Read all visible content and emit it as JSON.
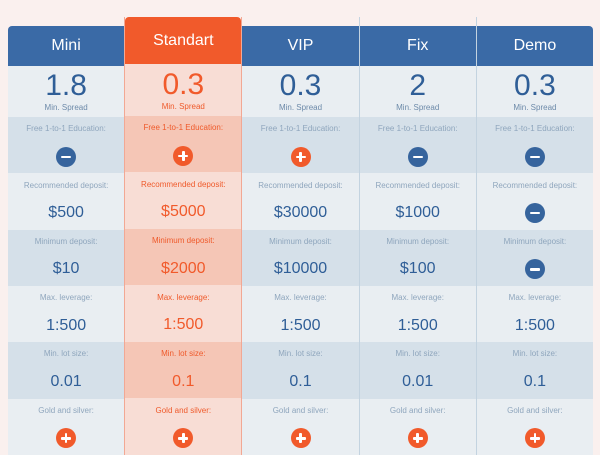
{
  "plans": [
    {
      "name": "Mini",
      "featured": false,
      "spread": "1.8",
      "spread_label": "Min. Spread",
      "education_label": "Free 1-to-1 Education:",
      "education": "minus",
      "recommended_label": "Recommended deposit:",
      "recommended": "$500",
      "minimum_label": "Minimum deposit:",
      "minimum": "$10",
      "leverage_label": "Max. leverage:",
      "leverage": "1:500",
      "lot_label": "Min. lot size:",
      "lot": "0.01",
      "gold_label": "Gold and silver:",
      "gold": "plus"
    },
    {
      "name": "Standart",
      "featured": true,
      "spread": "0.3",
      "spread_label": "Min. Spread",
      "education_label": "Free 1-to-1 Education:",
      "education": "plus",
      "recommended_label": "Recommended deposit:",
      "recommended": "$5000",
      "minimum_label": "Minimum deposit:",
      "minimum": "$2000",
      "leverage_label": "Max. leverage:",
      "leverage": "1:500",
      "lot_label": "Min. lot size:",
      "lot": "0.1",
      "gold_label": "Gold and silver:",
      "gold": "plus"
    },
    {
      "name": "VIP",
      "featured": false,
      "spread": "0.3",
      "spread_label": "Min. Spread",
      "education_label": "Free 1-to-1 Education:",
      "education": "plus",
      "recommended_label": "Recommended deposit:",
      "recommended": "$30000",
      "minimum_label": "Minimum deposit:",
      "minimum": "$10000",
      "leverage_label": "Max. leverage:",
      "leverage": "1:500",
      "lot_label": "Min. lot size:",
      "lot": "0.1",
      "gold_label": "Gold and silver:",
      "gold": "plus"
    },
    {
      "name": "Fix",
      "featured": false,
      "spread": "2",
      "spread_label": "Min. Spread",
      "education_label": "Free 1-to-1 Education:",
      "education": "minus",
      "recommended_label": "Recommended deposit:",
      "recommended": "$1000",
      "minimum_label": "Minimum deposit:",
      "minimum": "$100",
      "leverage_label": "Max. leverage:",
      "leverage": "1:500",
      "lot_label": "Min. lot size:",
      "lot": "0.01",
      "gold_label": "Gold and silver:",
      "gold": "plus"
    },
    {
      "name": "Demo",
      "featured": false,
      "spread": "0.3",
      "spread_label": "Min. Spread",
      "education_label": "Free 1-to-1 Education:",
      "education": "minus",
      "recommended_label": "Recommended deposit:",
      "recommended": "minus",
      "minimum_label": "Minimum deposit:",
      "minimum": "minus",
      "leverage_label": "Max. leverage:",
      "leverage": "1:500",
      "lot_label": "Min. lot size:",
      "lot": "0.1",
      "gold_label": "Gold and silver:",
      "gold": "plus"
    }
  ],
  "icons": {
    "plus": "plus-circle-icon",
    "minus": "minus-circle-icon"
  },
  "colors": {
    "header_blue": "#3a6aa6",
    "featured_orange": "#f15a2b",
    "page_background": "#faf0ee"
  }
}
